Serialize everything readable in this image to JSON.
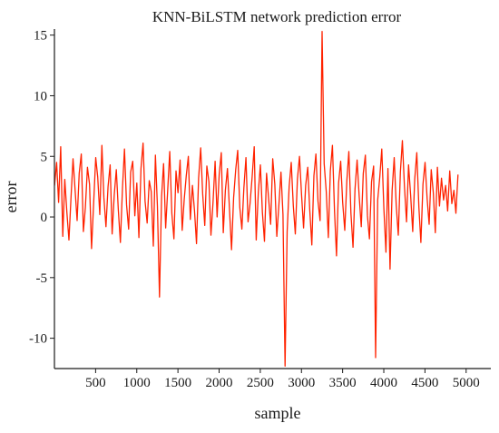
{
  "chart_data": {
    "type": "line",
    "title": "KNN-BiLSTM network prediction error",
    "xlabel": "sample",
    "ylabel": "error",
    "xlim": [
      0,
      5300
    ],
    "ylim": [
      -12.5,
      15.5
    ],
    "grid": false,
    "legend": "none",
    "line_color": "#ff2200",
    "axis_color": "#1a1a1a",
    "x_ticks": [
      500,
      1000,
      1500,
      2000,
      2500,
      3000,
      3500,
      4000,
      4500,
      5000
    ],
    "y_ticks": [
      -10,
      -5,
      0,
      5,
      10,
      15
    ],
    "series": [
      {
        "x_start": 1,
        "x_step": 25,
        "values": [
          2.6,
          4.5,
          1.2,
          5.8,
          -1.6,
          3.1,
          0.4,
          -1.9,
          1.5,
          4.8,
          2.2,
          -0.3,
          3.6,
          5.2,
          -1.2,
          0.8,
          4.1,
          2.7,
          -2.6,
          1.1,
          4.9,
          3.3,
          0.2,
          5.9,
          1.6,
          -0.8,
          2.5,
          4.3,
          -1.4,
          1.8,
          3.9,
          0.6,
          -2.1,
          2.4,
          5.6,
          1.0,
          -1.0,
          3.7,
          4.6,
          0.1,
          2.8,
          -1.7,
          4.0,
          6.1,
          1.3,
          -0.5,
          3.0,
          2.1,
          -2.4,
          5.1,
          0.9,
          -6.6,
          1.7,
          4.4,
          -0.9,
          2.3,
          5.4,
          0.3,
          -1.8,
          3.8,
          2.0,
          4.7,
          -1.1,
          1.4,
          3.4,
          5.0,
          -0.2,
          2.6,
          0.5,
          -2.2,
          3.2,
          5.7,
          1.9,
          -0.7,
          4.2,
          2.9,
          -1.5,
          1.2,
          4.6,
          0.0,
          3.5,
          5.3,
          -1.3,
          2.2,
          4.0,
          0.7,
          -2.7,
          1.6,
          3.9,
          5.5,
          0.8,
          -1.0,
          2.4,
          4.9,
          -0.4,
          1.1,
          3.3,
          5.8,
          -1.9,
          2.0,
          4.3,
          0.4,
          -2.0,
          3.6,
          1.5,
          -0.6,
          4.8,
          2.7,
          -1.6,
          1.0,
          3.7,
          0.2,
          -12.3,
          -1.2,
          2.5,
          4.5,
          0.9,
          -1.4,
          3.1,
          5.0,
          1.8,
          -0.9,
          2.6,
          4.1,
          0.6,
          -2.3,
          3.4,
          5.2,
          1.3,
          -0.3,
          15.3,
          4.4,
          2.1,
          -1.7,
          3.8,
          5.9,
          0.5,
          -3.2,
          2.8,
          4.6,
          1.2,
          -1.1,
          3.0,
          5.4,
          0.3,
          -2.5,
          2.3,
          4.7,
          1.7,
          -0.8,
          3.6,
          5.1,
          0.1,
          -1.8,
          2.9,
          4.2,
          -11.6,
          1.4,
          3.3,
          5.6,
          0.7,
          -2.9,
          4.0,
          -4.3,
          2.2,
          4.9,
          1.0,
          -1.5,
          3.7,
          6.3,
          2.5,
          -0.4,
          4.3,
          1.8,
          -1.2,
          3.1,
          5.3,
          0.8,
          -2.1,
          2.7,
          4.5,
          1.5,
          -0.6,
          3.9,
          2.0,
          -1.3,
          4.1,
          0.9,
          3.2,
          1.4,
          2.6,
          0.5,
          3.8,
          1.1,
          2.2,
          0.3,
          3.5
        ]
      }
    ]
  }
}
